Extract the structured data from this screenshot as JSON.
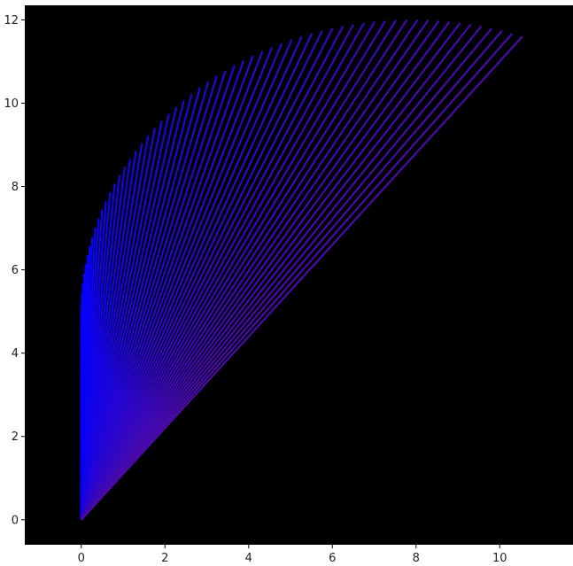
{
  "chart_data": {
    "type": "line",
    "title": "",
    "xlabel": "",
    "ylabel": "",
    "xlim": [
      -1.35,
      11.75
    ],
    "ylim": [
      -0.6,
      12.35
    ],
    "xticks": [
      0,
      2,
      4,
      6,
      8,
      10
    ],
    "yticks": [
      0,
      2,
      4,
      6,
      8,
      10,
      12
    ],
    "grid": false,
    "legend": "none",
    "plot_background": "#000000",
    "line_color_start": "#0000ff",
    "line_color_end": "#4a0aa8",
    "series_description": "fan of straight segments from origin (0,0) to arc endpoints",
    "fan": {
      "origin": [
        0,
        0
      ],
      "segment_count": 60,
      "endpoints_start": [
        0,
        5.0
      ],
      "endpoints_end": [
        10.5,
        11.5
      ]
    }
  }
}
